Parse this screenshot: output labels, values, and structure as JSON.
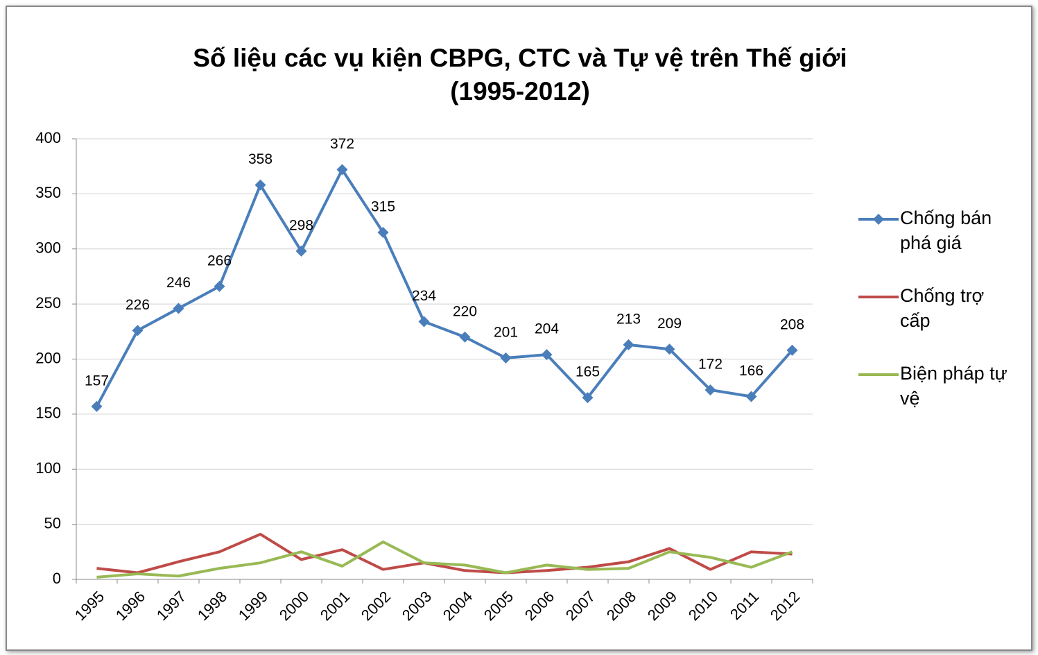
{
  "chart_data": {
    "type": "line",
    "title": [
      "Số liệu các vụ kiện CBPG, CTC và Tự vệ trên Thế giới",
      "(1995-2012)"
    ],
    "categories": [
      "1995",
      "1996",
      "1997",
      "1998",
      "1999",
      "2000",
      "2001",
      "2002",
      "2003",
      "2004",
      "2005",
      "2006",
      "2007",
      "2008",
      "2009",
      "2010",
      "2011",
      "2012"
    ],
    "series": [
      {
        "name": "Chống bán phá giá",
        "color": "#4a7ebb",
        "marker": "diamond",
        "data_labels": true,
        "values": [
          157,
          226,
          246,
          266,
          358,
          298,
          372,
          315,
          234,
          220,
          201,
          204,
          165,
          213,
          209,
          172,
          166,
          208
        ]
      },
      {
        "name": "Chống trợ cấp",
        "color": "#be4b48",
        "marker": "none",
        "data_labels": false,
        "values": [
          10,
          6,
          16,
          25,
          41,
          18,
          27,
          9,
          15,
          8,
          6,
          8,
          11,
          16,
          28,
          9,
          25,
          23
        ]
      },
      {
        "name": "Biện pháp tự vệ",
        "color": "#98b954",
        "marker": "none",
        "data_labels": false,
        "values": [
          2,
          5,
          3,
          10,
          15,
          25,
          12,
          34,
          15,
          13,
          6,
          13,
          9,
          10,
          25,
          20,
          11,
          25
        ]
      }
    ],
    "ylim": [
      0,
      400
    ],
    "yticks": [
      0,
      50,
      100,
      150,
      200,
      250,
      300,
      350,
      400
    ],
    "grid": true,
    "legend": "right"
  }
}
